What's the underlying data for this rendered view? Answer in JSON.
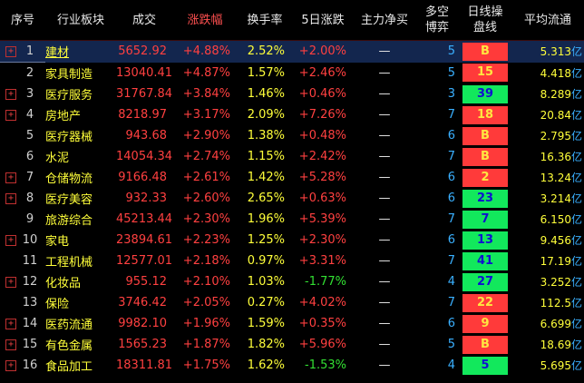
{
  "headers": [
    "序号",
    "行业板块",
    "成交",
    "涨跌幅",
    "换手率",
    "5日涨跌",
    "主力净买",
    "多空\n博弈",
    "日线操\n盘线",
    "平均流通"
  ],
  "headers_line2": {
    "7": "博弈",
    "8": "盘线"
  },
  "rows": [
    {
      "idx": "1",
      "expand": true,
      "name": "建材",
      "vol": "5652.92",
      "chg": "+4.88%",
      "turn": "2.52%",
      "d5": "+2.00%",
      "d5dir": "up",
      "net": "—",
      "cnt": "5",
      "sig": "B",
      "sigc": "red",
      "flow": "5.313",
      "unit": "亿"
    },
    {
      "idx": "2",
      "expand": false,
      "name": "家具制造",
      "vol": "13040.41",
      "chg": "+4.87%",
      "turn": "1.57%",
      "d5": "+2.46%",
      "d5dir": "up",
      "net": "—",
      "cnt": "5",
      "sig": "15",
      "sigc": "red",
      "flow": "4.418",
      "unit": "亿"
    },
    {
      "idx": "3",
      "expand": true,
      "name": "医疗服务",
      "vol": "31767.84",
      "chg": "+3.84%",
      "turn": "1.46%",
      "d5": "+0.46%",
      "d5dir": "up",
      "net": "—",
      "cnt": "3",
      "sig": "39",
      "sigc": "green",
      "flow": "8.289",
      "unit": "亿"
    },
    {
      "idx": "4",
      "expand": true,
      "name": "房地产",
      "vol": "8218.97",
      "chg": "+3.17%",
      "turn": "2.09%",
      "d5": "+7.26%",
      "d5dir": "up",
      "net": "—",
      "cnt": "7",
      "sig": "18",
      "sigc": "red",
      "flow": "20.84",
      "unit": "亿"
    },
    {
      "idx": "5",
      "expand": false,
      "name": "医疗器械",
      "vol": "943.68",
      "chg": "+2.90%",
      "turn": "1.38%",
      "d5": "+0.48%",
      "d5dir": "up",
      "net": "—",
      "cnt": "6",
      "sig": "B",
      "sigc": "red",
      "flow": "2.795",
      "unit": "亿"
    },
    {
      "idx": "6",
      "expand": false,
      "name": "水泥",
      "vol": "14054.34",
      "chg": "+2.74%",
      "turn": "1.15%",
      "d5": "+2.42%",
      "d5dir": "up",
      "net": "—",
      "cnt": "7",
      "sig": "B",
      "sigc": "red",
      "flow": "16.36",
      "unit": "亿"
    },
    {
      "idx": "7",
      "expand": true,
      "name": "仓储物流",
      "vol": "9166.48",
      "chg": "+2.61%",
      "turn": "1.42%",
      "d5": "+5.28%",
      "d5dir": "up",
      "net": "—",
      "cnt": "6",
      "sig": "2",
      "sigc": "red",
      "flow": "13.24",
      "unit": "亿"
    },
    {
      "idx": "8",
      "expand": true,
      "name": "医疗美容",
      "vol": "932.33",
      "chg": "+2.60%",
      "turn": "2.65%",
      "d5": "+0.63%",
      "d5dir": "up",
      "net": "—",
      "cnt": "6",
      "sig": "23",
      "sigc": "green",
      "flow": "3.214",
      "unit": "亿"
    },
    {
      "idx": "9",
      "expand": false,
      "name": "旅游综合",
      "vol": "45213.44",
      "chg": "+2.30%",
      "turn": "1.96%",
      "d5": "+5.39%",
      "d5dir": "up",
      "net": "—",
      "cnt": "7",
      "sig": "7",
      "sigc": "green",
      "flow": "6.150",
      "unit": "亿"
    },
    {
      "idx": "10",
      "expand": true,
      "name": "家电",
      "vol": "23894.61",
      "chg": "+2.23%",
      "turn": "1.25%",
      "d5": "+2.30%",
      "d5dir": "up",
      "net": "—",
      "cnt": "6",
      "sig": "13",
      "sigc": "green",
      "flow": "9.456",
      "unit": "亿"
    },
    {
      "idx": "11",
      "expand": false,
      "name": "工程机械",
      "vol": "12577.01",
      "chg": "+2.18%",
      "turn": "0.97%",
      "d5": "+3.31%",
      "d5dir": "up",
      "net": "—",
      "cnt": "7",
      "sig": "41",
      "sigc": "green",
      "flow": "17.19",
      "unit": "亿"
    },
    {
      "idx": "12",
      "expand": true,
      "name": "化妆品",
      "vol": "955.12",
      "chg": "+2.10%",
      "turn": "1.03%",
      "d5": "-1.77%",
      "d5dir": "down",
      "net": "—",
      "cnt": "4",
      "sig": "27",
      "sigc": "green",
      "flow": "3.252",
      "unit": "亿"
    },
    {
      "idx": "13",
      "expand": false,
      "name": "保险",
      "vol": "3746.42",
      "chg": "+2.05%",
      "turn": "0.27%",
      "d5": "+4.02%",
      "d5dir": "up",
      "net": "—",
      "cnt": "7",
      "sig": "22",
      "sigc": "red",
      "flow": "112.5",
      "unit": "亿"
    },
    {
      "idx": "14",
      "expand": true,
      "name": "医药流通",
      "vol": "9982.10",
      "chg": "+1.96%",
      "turn": "1.59%",
      "d5": "+0.35%",
      "d5dir": "up",
      "net": "—",
      "cnt": "6",
      "sig": "9",
      "sigc": "red",
      "flow": "6.699",
      "unit": "亿"
    },
    {
      "idx": "15",
      "expand": true,
      "name": "有色金属",
      "vol": "1565.23",
      "chg": "+1.87%",
      "turn": "1.82%",
      "d5": "+5.96%",
      "d5dir": "up",
      "net": "—",
      "cnt": "5",
      "sig": "B",
      "sigc": "red",
      "flow": "18.69",
      "unit": "亿"
    },
    {
      "idx": "16",
      "expand": true,
      "name": "食品加工",
      "vol": "18311.81",
      "chg": "+1.75%",
      "turn": "1.62%",
      "d5": "-1.53%",
      "d5dir": "down",
      "net": "—",
      "cnt": "4",
      "sig": "5",
      "sigc": "green",
      "flow": "5.695",
      "unit": "亿"
    }
  ],
  "colors": {
    "up": "#ff4040",
    "down": "#32e032",
    "name": "#ffff3a",
    "count": "#3ab0ff",
    "badge_red": "#ff3a3a",
    "badge_green": "#12e85c"
  },
  "icons": {
    "expand": "plus-box-icon"
  },
  "expand_glyph": "+"
}
